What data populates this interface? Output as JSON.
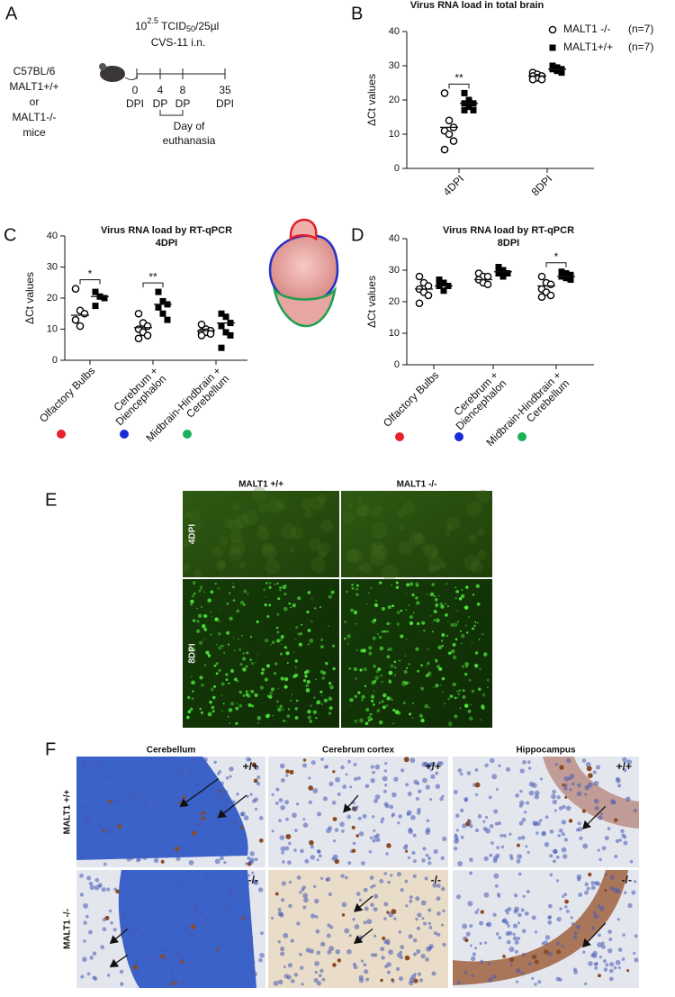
{
  "panel_labels": [
    "A",
    "B",
    "C",
    "D",
    "E",
    "F"
  ],
  "diagram_a": {
    "dose": {
      "base": "10",
      "exponent": "2.5",
      "unit": " TCID",
      "unit_sub": "50",
      "per": "/25µl"
    },
    "route": "CVS-11 i.n.",
    "strain": [
      "C57BL/6",
      "MALT1+/+",
      "or",
      "MALT1-/-",
      "mice"
    ],
    "timeline": [
      {
        "top": "0",
        "bottom": "DPI"
      },
      {
        "top": "4",
        "bottom": "DP"
      },
      {
        "top": "8",
        "bottom": "DP"
      },
      {
        "top": "35",
        "bottom": "DPI"
      }
    ],
    "bracket_label": [
      "Day of",
      "euthanasia"
    ]
  },
  "chart_data": [
    {
      "type": "dotplot",
      "title": "Virus RNA load in total brain",
      "ylabel": "ΔCt values",
      "categories": [
        "4DPI",
        "8DPI"
      ],
      "ylim": [
        0,
        40
      ],
      "yticks": [
        0,
        10,
        20,
        30,
        40
      ],
      "legend": "top-right",
      "significance": [
        "**",
        null
      ],
      "series": [
        {
          "name": "MALT1 -/-",
          "n_label": "(n=7)",
          "marker": "open-circle",
          "color": "#000000",
          "values": [
            [
              22,
              14,
              12,
              11,
              10,
              8,
              5.5
            ],
            [
              28,
              27.5,
              27,
              27,
              26.5,
              26,
              26
            ]
          ],
          "means": [
            12,
            27
          ]
        },
        {
          "name": "MALT1+/+",
          "n_label": "(n=7)",
          "marker": "square",
          "color": "#000000",
          "values": [
            [
              22,
              20,
              19,
              19,
              18,
              17,
              17
            ],
            [
              30,
              29.5,
              29,
              29,
              28.5,
              28,
              29.5
            ]
          ],
          "means": [
            19,
            29
          ]
        }
      ]
    },
    {
      "type": "dotplot",
      "title": "Virus RNA load by RT-qPCR",
      "subtitle": "4DPI",
      "ylabel": "ΔCt values",
      "categories": [
        "Olfactory Bulbs",
        [
          "Cerebrum +",
          "Diencephalon"
        ],
        [
          "Midbrain-Hindbrain +",
          "Cerebellum"
        ]
      ],
      "category_colors": [
        "#e8202a",
        "#1a2ad8",
        "#19b25a"
      ],
      "ylim": [
        0,
        40
      ],
      "yticks": [
        0,
        10,
        20,
        30,
        40
      ],
      "significance": [
        "*",
        "**",
        null
      ],
      "series": [
        {
          "marker": "open-circle",
          "color": "#000000",
          "values": [
            [
              23,
              16,
              15,
              13,
              11
            ],
            [
              15,
              12,
              11,
              10,
              9,
              8,
              7
            ],
            [
              11.5,
              10,
              9.5,
              9,
              9,
              8.5,
              8
            ]
          ],
          "means": [
            14.5,
            10.5,
            9.5
          ]
        },
        {
          "marker": "square",
          "color": "#000000",
          "values": [
            [
              22,
              20.5,
              20,
              17.5
            ],
            [
              22,
              19,
              18,
              17,
              15,
              13
            ],
            [
              15,
              14,
              12,
              11,
              9,
              8,
              4
            ]
          ],
          "means": [
            20.5,
            18,
            12
          ]
        }
      ]
    },
    {
      "type": "dotplot",
      "title": "Virus RNA load by RT-qPCR",
      "subtitle": "8DPI",
      "ylabel": "ΔCt values",
      "categories": [
        "Olfactory Bulbs",
        [
          "Cerebrum +",
          "Diencephalon"
        ],
        [
          "Midbrain-Hindbrain +",
          "Cerebellum"
        ]
      ],
      "category_colors": [
        "#e8202a",
        "#1a2ad8",
        "#19b25a"
      ],
      "ylim": [
        0,
        40
      ],
      "yticks": [
        0,
        10,
        20,
        30,
        40
      ],
      "significance": [
        null,
        null,
        "*"
      ],
      "series": [
        {
          "marker": "open-circle",
          "color": "#000000",
          "values": [
            [
              28,
              26,
              25,
              24,
              23,
              22,
              19.5
            ],
            [
              29,
              28,
              28,
              27,
              26,
              25.5
            ],
            [
              28,
              26,
              25.5,
              24,
              23,
              22,
              21.5
            ]
          ],
          "means": [
            24,
            27,
            25
          ]
        },
        {
          "marker": "square",
          "color": "#000000",
          "values": [
            [
              27,
              26,
              25,
              25,
              23.5
            ],
            [
              31,
              30,
              29,
              29,
              28
            ],
            [
              29.5,
              29,
              28.5,
              28,
              27.5,
              27
            ]
          ],
          "means": [
            25,
            29.5,
            28
          ]
        }
      ]
    }
  ],
  "figure_e": {
    "columns": [
      "MALT1 +/+",
      "MALT1 -/-"
    ],
    "rows": [
      "4DPI",
      "8DPI"
    ]
  },
  "figure_f": {
    "columns": [
      "Cerebellum",
      "Cerebrum cortex",
      "Hippocampus"
    ],
    "rows": [
      "MALT1 +/+",
      "MALT1 -/-"
    ],
    "genotype_tags": [
      "+/+",
      "-/-"
    ]
  }
}
